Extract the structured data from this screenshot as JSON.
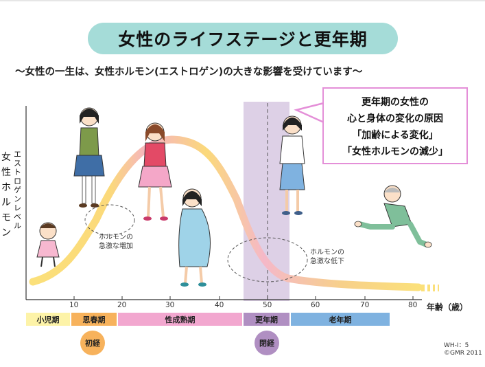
{
  "title": "女性のライフステージと更年期",
  "subtitle": "〜女性の一生は、女性ホルモン(エストロゲン)の大きな影響を受けています〜",
  "callout": {
    "lines": [
      "更年期の女性の",
      "心と身体の変化の原因",
      "「加齢による変化」",
      "「女性ホルモンの減少」"
    ]
  },
  "y_axis": {
    "small_label": "エストロゲンレベル",
    "big_label": "女性ホルモン"
  },
  "x_axis": {
    "ticks": [
      "10",
      "20",
      "30",
      "40",
      "50",
      "60",
      "70",
      "80"
    ],
    "label": "年齢（歳）"
  },
  "annotations": {
    "increase": [
      "ホルモンの",
      "急激な増加"
    ],
    "decrease": [
      "ホルモンの",
      "急激な低下"
    ]
  },
  "phases": [
    {
      "label": "小児期",
      "color": "#fdf3a8"
    },
    {
      "label": "思春期",
      "color": "#f7b25c"
    },
    {
      "label": "性成熟期",
      "color": "#f2a7cf"
    },
    {
      "label": "更年期",
      "color": "#b08fc2"
    },
    {
      "label": "老年期",
      "color": "#7fb2e0"
    }
  ],
  "events": [
    {
      "label": "初経",
      "color": "#f7b25c"
    },
    {
      "label": "閉経",
      "color": "#b08fc2"
    }
  ],
  "code": [
    "WH-I：5",
    "©GMR 2011"
  ],
  "colors": {
    "curve_rise": "#fbe07a",
    "curve_peak": "#f0a2b8",
    "menopause_band": "#ddd0e6"
  }
}
